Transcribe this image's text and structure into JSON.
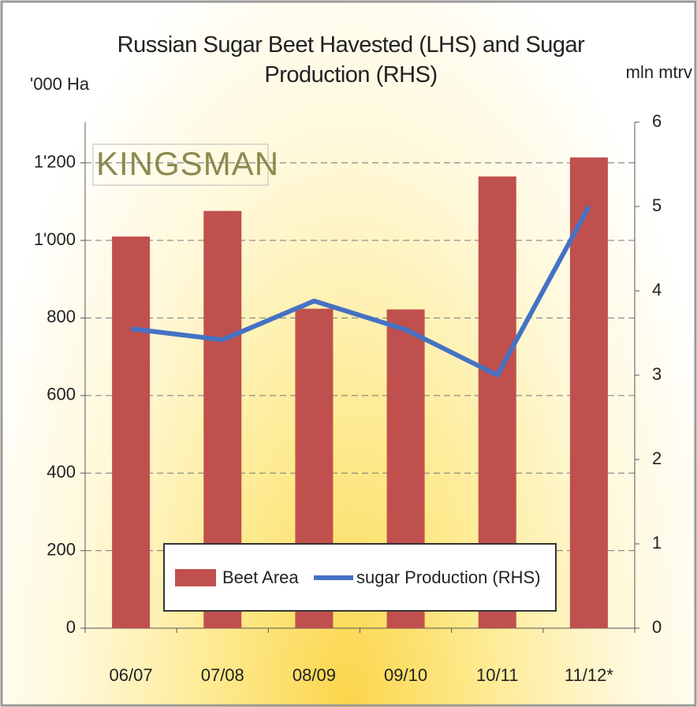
{
  "chart_data": {
    "type": "bar_line",
    "title": "Russian Sugar Beet Havested (LHS) and Sugar Production (RHS)",
    "y_label": "'000 Ha",
    "y2_label": "mln mtrv",
    "watermark": "KINGSMAN",
    "categories": [
      "06/07",
      "07/08",
      "08/09",
      "09/10",
      "10/11",
      "11/12*"
    ],
    "series": [
      {
        "name": "Beet Area",
        "type": "bar",
        "color": "#c0504d",
        "values": [
          1010,
          1076,
          824,
          822,
          1165,
          1214
        ]
      },
      {
        "name": "sugar Production (RHS)",
        "type": "line",
        "axis": "y2",
        "color": "#4472c4",
        "values": [
          3.55,
          3.42,
          3.88,
          3.54,
          3.0,
          5.0
        ]
      }
    ],
    "ylim": [
      0,
      1305
    ],
    "yticks": [
      0,
      200,
      400,
      600,
      800,
      {
        "value": 1000,
        "label": "1'000"
      },
      {
        "value": 1200,
        "label": "1'200"
      }
    ],
    "y2lim": [
      0,
      6
    ],
    "y2ticks": [
      0,
      1,
      2,
      3,
      4,
      5,
      6
    ],
    "grid": true
  }
}
